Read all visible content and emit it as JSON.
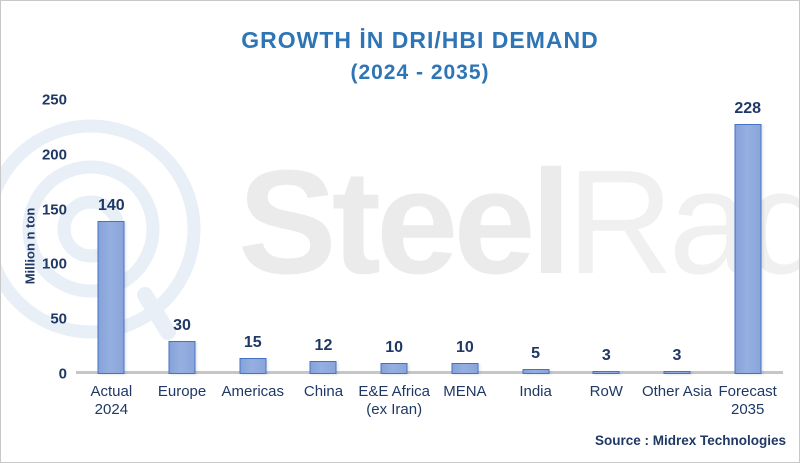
{
  "chart_data": {
    "type": "bar",
    "title": "GROWTH İN DRI/HBI DEMAND",
    "subtitle": "(2024 - 2035)",
    "ylabel": "Million n ton",
    "ylim": [
      0,
      250
    ],
    "yticks": [
      0,
      50,
      100,
      150,
      200,
      250
    ],
    "grid": false,
    "legend": "none",
    "categories": [
      "Actual 2024",
      "Europe",
      "Americas",
      "China",
      "E&E Africa (ex Iran)",
      "MENA",
      "India",
      "RoW",
      "Other Asia",
      "Forecast 2035"
    ],
    "category_lines": [
      [
        "Actual",
        "2024"
      ],
      [
        "Europe"
      ],
      [
        "Americas"
      ],
      [
        "China"
      ],
      [
        "E&E Africa",
        "(ex Iran)"
      ],
      [
        "MENA"
      ],
      [
        "India"
      ],
      [
        "RoW"
      ],
      [
        "Other Asia"
      ],
      [
        "Forecast",
        "2035"
      ]
    ],
    "values": [
      140,
      30,
      15,
      12,
      10,
      10,
      5,
      3,
      3,
      228
    ],
    "source": "Source : Midrex Technologies",
    "watermark": {
      "bold": "Steel",
      "light": "Radar"
    },
    "colors": {
      "title": "#2E75B6",
      "ink": "#1F3864",
      "bar_fill": "#8FA9DC",
      "bar_border": "#4472C4",
      "baseline": "#C6C6C6",
      "watermark_gray": "#EDEDED",
      "watermark_rings": "#E9EFF7"
    }
  }
}
